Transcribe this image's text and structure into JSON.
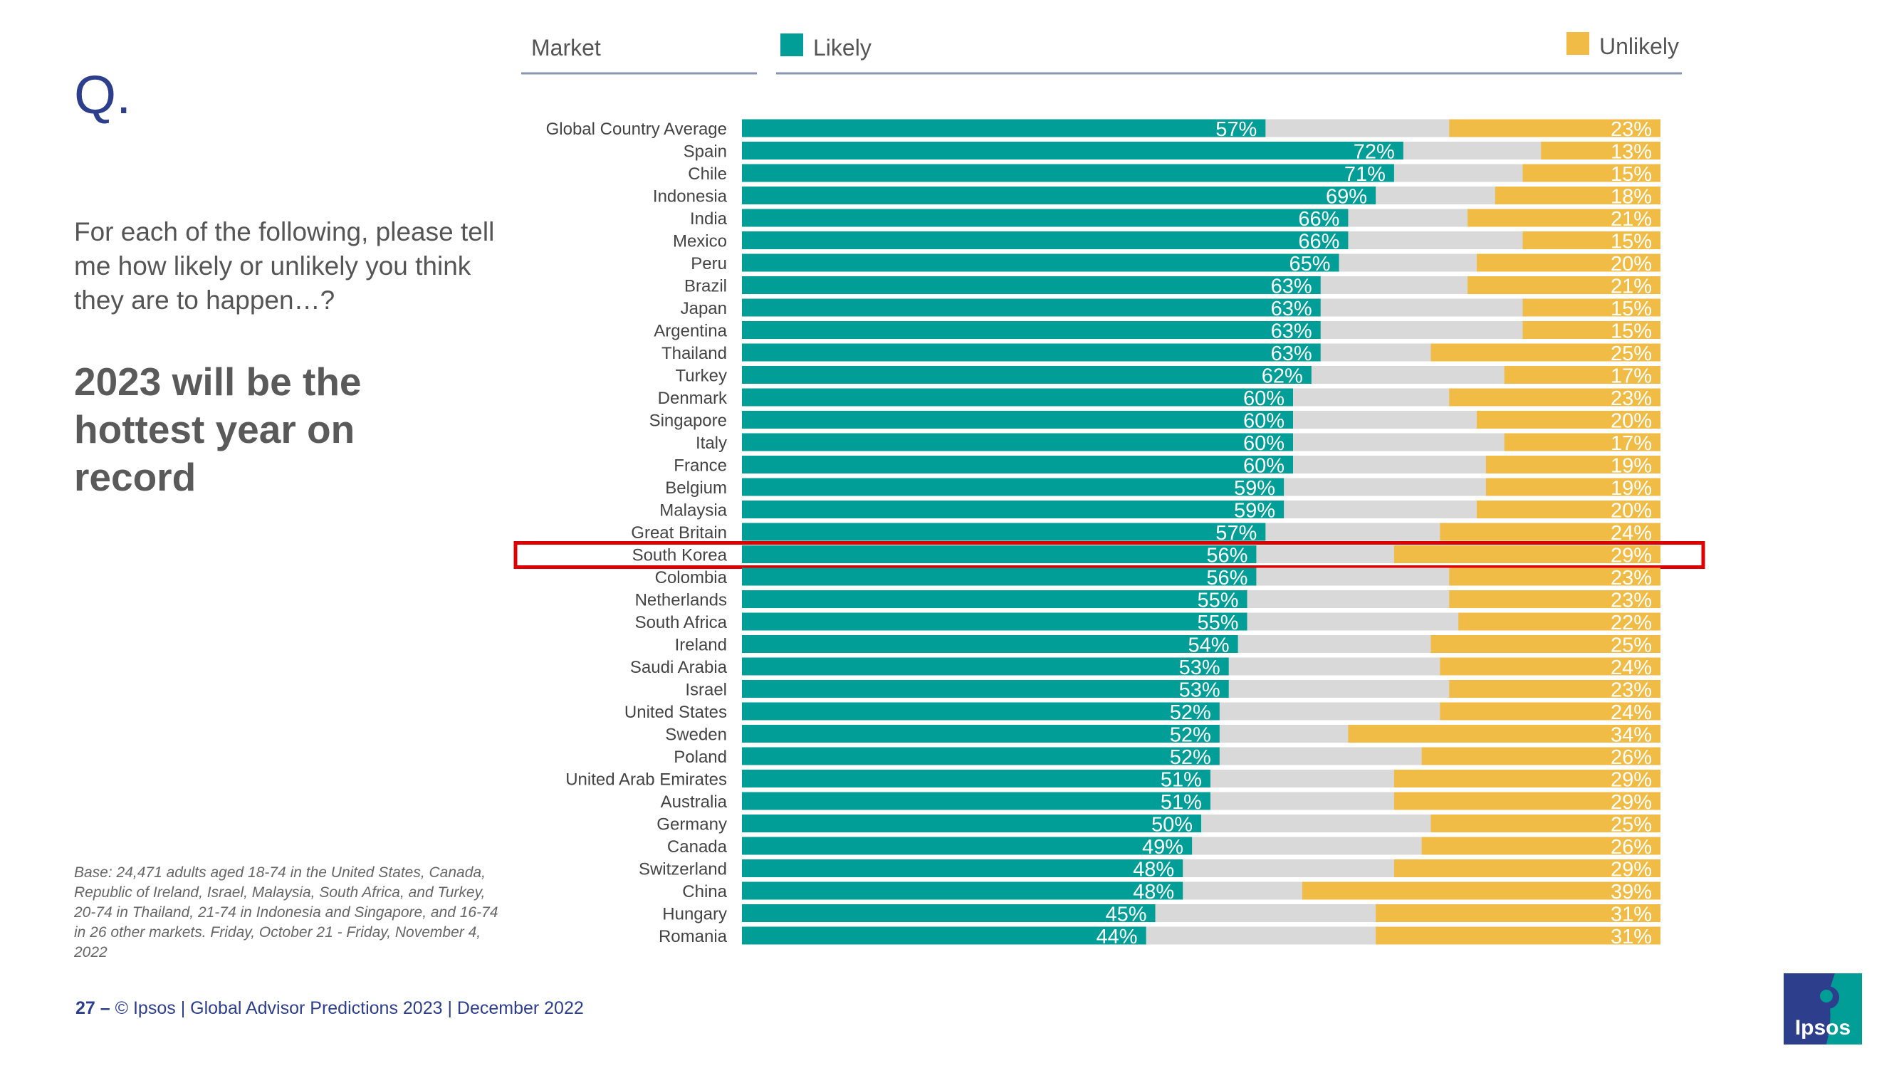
{
  "slide": {
    "q_mark": "Q.",
    "question": "For each of the following, please tell me how likely or unlikely you think they are to happen…?",
    "headline": "2023 will be the hottest year on record",
    "base_note": "Base: 24,471 adults aged 18-74 in the United States, Canada, Republic of Ireland, Israel, Malaysia, South Africa, and Turkey, 20-74 in Thailand, 21-74 in Indonesia and Singapore, and 16-74 in 26 other markets. Friday, October 21 -  Friday, November 4, 2022",
    "footer_page": "27 –",
    "footer_text": "© Ipsos | Global Advisor Predictions 2023 | December 2022",
    "logo_text": "Ipsos"
  },
  "colors": {
    "likely": "#009e96",
    "unlikely": "#f0bc45",
    "neutral": "#d9d9d9",
    "highlight": "#dd0000",
    "brand": "#2d3e8c"
  },
  "chart_data": {
    "type": "bar",
    "orientation": "horizontal-stacked",
    "header_market": "Market",
    "highlighted_category": "South Korea",
    "legend": [
      "Likely",
      "Unlikely"
    ],
    "categories": [
      "Global Country Average",
      "Spain",
      "Chile",
      "Indonesia",
      "India",
      "Mexico",
      "Peru",
      "Brazil",
      "Japan",
      "Argentina",
      "Thailand",
      "Turkey",
      "Denmark",
      "Singapore",
      "Italy",
      "France",
      "Belgium",
      "Malaysia",
      "Great Britain",
      "South Korea",
      "Colombia",
      "Netherlands",
      "South Africa",
      "Ireland",
      "Saudi Arabia",
      "Israel",
      "United States",
      "Sweden",
      "Poland",
      "United Arab Emirates",
      "Australia",
      "Germany",
      "Canada",
      "Switzerland",
      "China",
      "Hungary",
      "Romania"
    ],
    "series": [
      {
        "name": "Likely",
        "values": [
          57,
          72,
          71,
          69,
          66,
          66,
          65,
          63,
          63,
          63,
          63,
          62,
          60,
          60,
          60,
          60,
          59,
          59,
          57,
          56,
          56,
          55,
          55,
          54,
          53,
          53,
          52,
          52,
          52,
          51,
          51,
          50,
          49,
          48,
          48,
          45,
          44
        ]
      },
      {
        "name": "Unlikely",
        "values": [
          23,
          13,
          15,
          18,
          21,
          15,
          20,
          21,
          15,
          15,
          25,
          17,
          23,
          20,
          17,
          19,
          19,
          20,
          24,
          29,
          23,
          23,
          22,
          25,
          24,
          23,
          24,
          34,
          26,
          29,
          29,
          25,
          26,
          29,
          39,
          31,
          31
        ]
      }
    ],
    "label_format": "{v}%",
    "xlim": [
      0,
      100
    ]
  }
}
